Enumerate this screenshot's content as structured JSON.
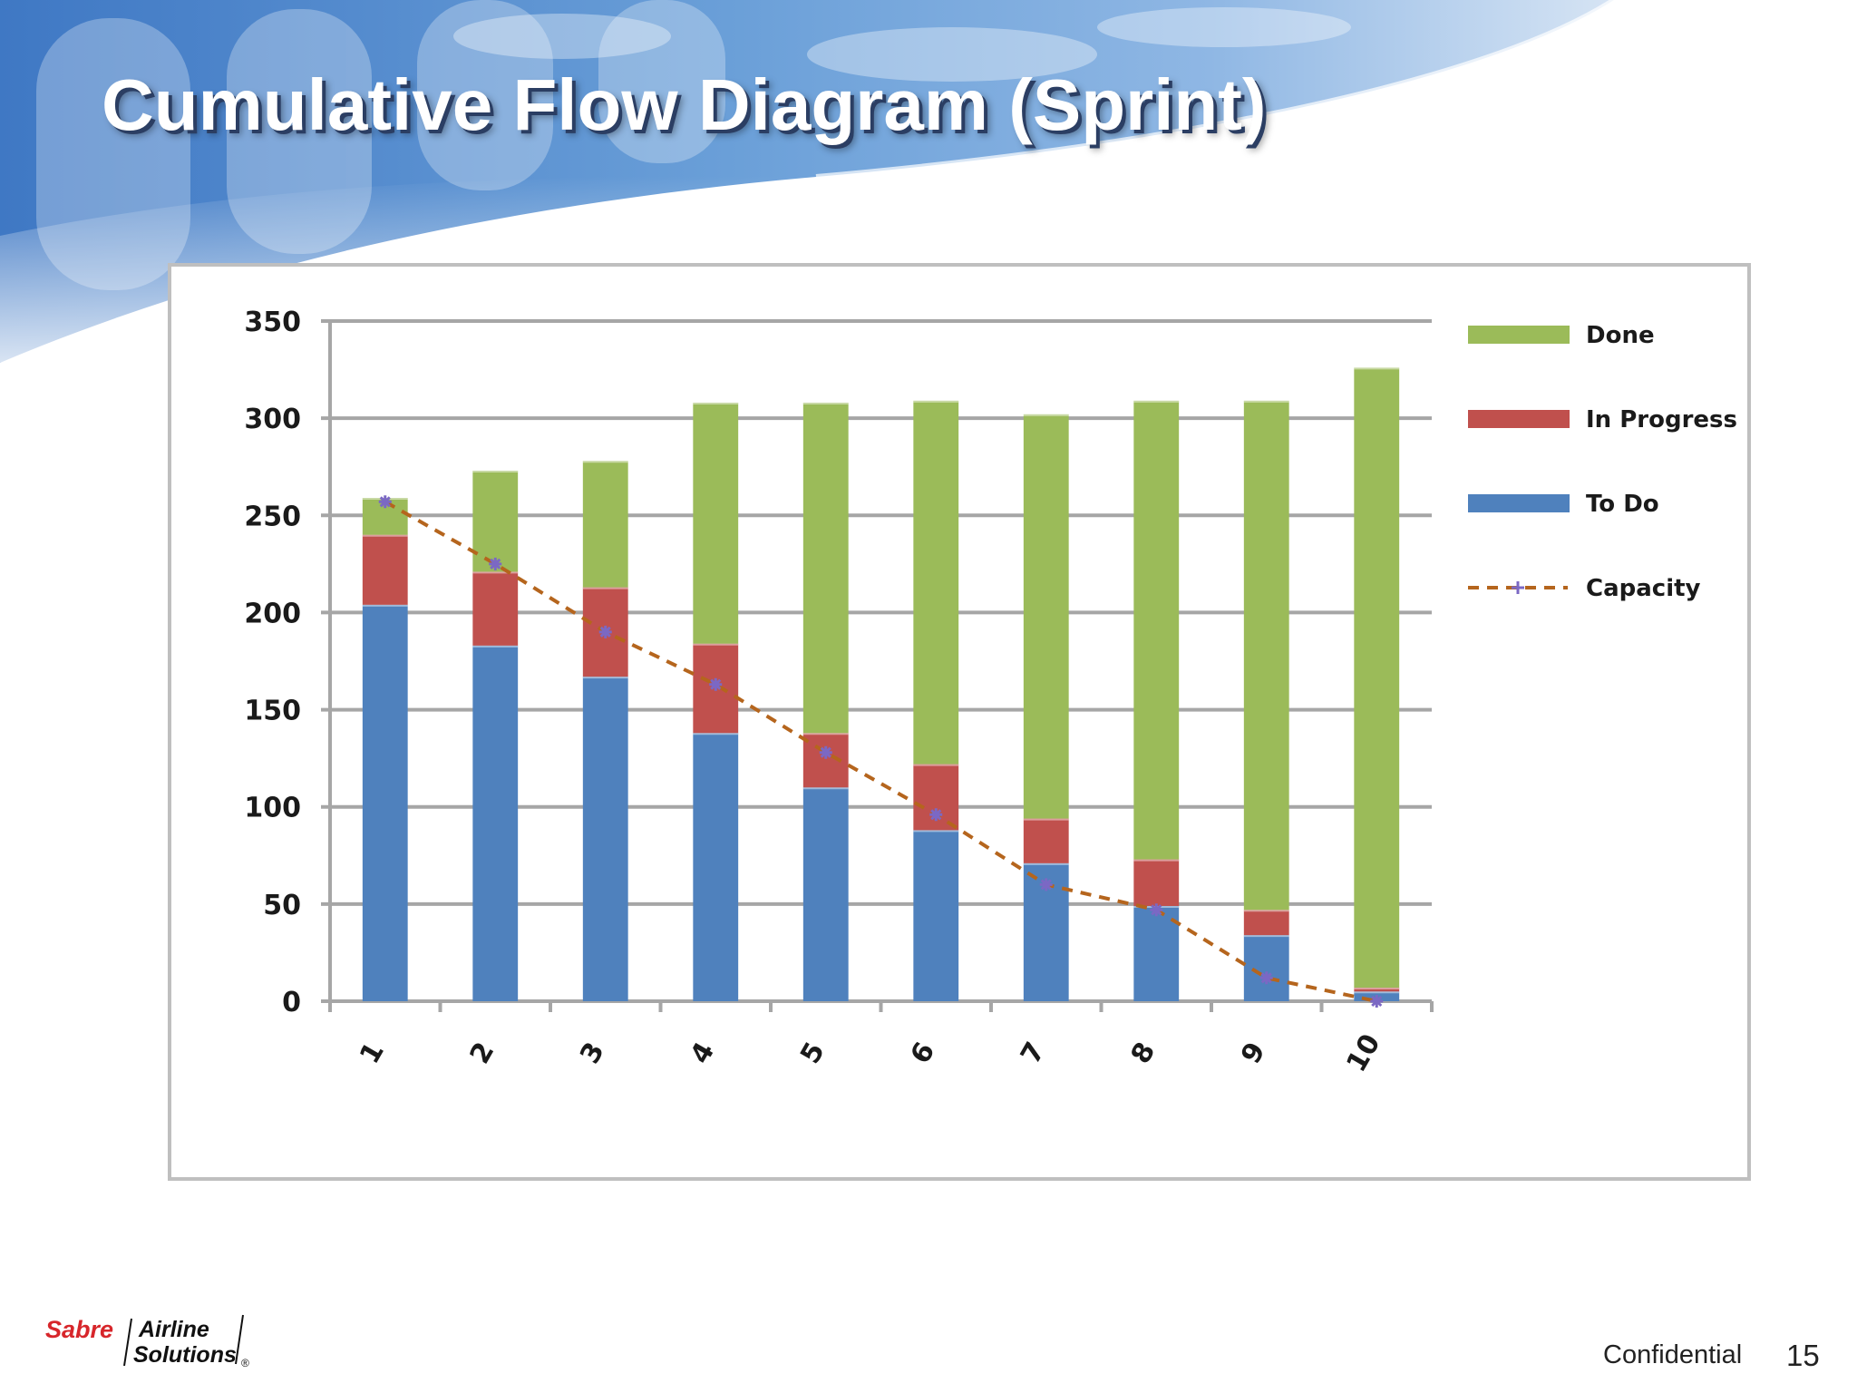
{
  "slide": {
    "title": "Cumulative Flow Diagram (Sprint)",
    "footer_confidential": "Confidential",
    "page_number": "15"
  },
  "logo": {
    "brand": "Sabre",
    "line1": "Airline",
    "line2": "Solutions",
    "mark": "®"
  },
  "colors": {
    "done": "#9bbb59",
    "in_progress": "#c0504d",
    "to_do": "#4f81bd",
    "capacity": "#b5651d",
    "capacity_marker": "#7b68c4",
    "gridline": "#a6a6a6"
  },
  "chart_data": {
    "type": "bar",
    "stacked": true,
    "title": "",
    "xlabel": "",
    "ylabel": "",
    "categories": [
      "1",
      "2",
      "3",
      "4",
      "5",
      "6",
      "7",
      "8",
      "9",
      "10"
    ],
    "series": [
      {
        "name": "To Do",
        "values": [
          204,
          183,
          167,
          138,
          110,
          88,
          71,
          49,
          34,
          5
        ]
      },
      {
        "name": "In Progress",
        "values": [
          36,
          38,
          46,
          46,
          28,
          34,
          23,
          24,
          13,
          2
        ]
      },
      {
        "name": "Done",
        "values": [
          19,
          52,
          65,
          124,
          170,
          187,
          208,
          236,
          262,
          319
        ]
      }
    ],
    "line_series": [
      {
        "name": "Capacity",
        "style": "dashed",
        "marker": "star",
        "values": [
          257,
          225,
          190,
          163,
          128,
          96,
          60,
          47,
          12,
          0
        ]
      }
    ],
    "ylim": [
      0,
      350
    ],
    "yticks": [
      "0",
      "50",
      "100",
      "150",
      "200",
      "250",
      "300",
      "350"
    ],
    "grid": true,
    "legend_position": "right",
    "legend": [
      "Done",
      "In Progress",
      "To Do",
      "Capacity"
    ]
  }
}
